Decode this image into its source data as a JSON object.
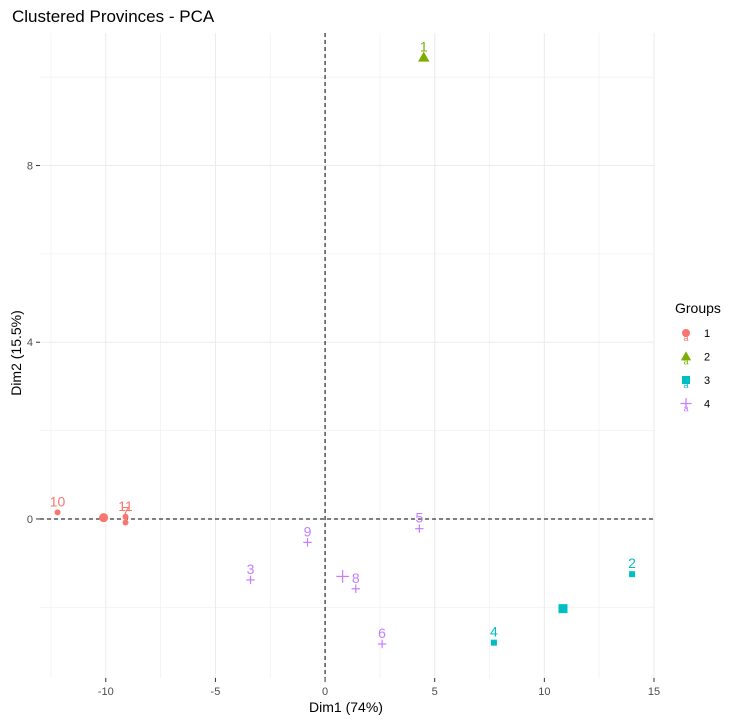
{
  "chart_data": {
    "type": "scatter",
    "title": "Clustered Provinces - PCA",
    "xlabel": "Dim1 (74%)",
    "ylabel": "Dim2 (15.5%)",
    "xlim": [
      -13,
      15
    ],
    "ylim": [
      -3.6,
      11
    ],
    "xticks": [
      -10,
      -5,
      0,
      5,
      10,
      15
    ],
    "yticks": [
      0,
      4,
      8
    ],
    "grid": true,
    "reference_lines": {
      "x": 0,
      "y": 0,
      "style": "dashed"
    },
    "legend": {
      "title": "Groups",
      "placement": "right",
      "entries": [
        {
          "label": "1",
          "color": "#F8766D",
          "shape": "circle"
        },
        {
          "label": "2",
          "color": "#7CAE00",
          "shape": "triangle"
        },
        {
          "label": "3",
          "color": "#00BFC4",
          "shape": "square"
        },
        {
          "label": "4",
          "color": "#C77CFF",
          "shape": "cross"
        }
      ]
    },
    "series": [
      {
        "name": "1",
        "color": "#F8766D",
        "shape": "circle",
        "points": [
          {
            "label": "10",
            "x": -12.2,
            "y": 0.15
          },
          {
            "label": "11",
            "x": -9.1,
            "y": 0.05
          },
          {
            "label": "7",
            "x": -9.1,
            "y": -0.08
          }
        ],
        "centroid": {
          "x": -10.1,
          "y": 0.03
        }
      },
      {
        "name": "2",
        "color": "#7CAE00",
        "shape": "triangle",
        "points": [
          {
            "label": "1",
            "x": 4.5,
            "y": 10.45
          }
        ],
        "centroid": {
          "x": 4.5,
          "y": 10.45
        }
      },
      {
        "name": "3",
        "color": "#00BFC4",
        "shape": "square",
        "points": [
          {
            "label": "2",
            "x": 14.0,
            "y": -1.25
          },
          {
            "label": "4",
            "x": 7.7,
            "y": -2.8
          }
        ],
        "centroid": {
          "x": 10.85,
          "y": -2.03
        }
      },
      {
        "name": "4",
        "color": "#C77CFF",
        "shape": "cross",
        "points": [
          {
            "label": "9",
            "x": -0.8,
            "y": -0.53
          },
          {
            "label": "5",
            "x": 4.3,
            "y": -0.22
          },
          {
            "label": "3",
            "x": -3.4,
            "y": -1.38
          },
          {
            "label": "8",
            "x": 1.4,
            "y": -1.58
          },
          {
            "label": "6",
            "x": 2.6,
            "y": -2.83
          }
        ],
        "centroid": {
          "x": 0.8,
          "y": -1.3
        }
      }
    ]
  }
}
